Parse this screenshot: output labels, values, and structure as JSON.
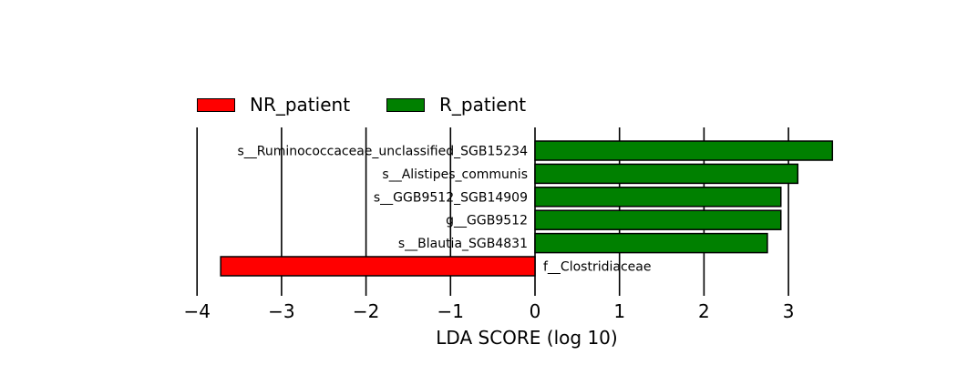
{
  "chart_data": {
    "type": "bar",
    "orientation": "horizontal",
    "title": "",
    "xlabel": "LDA SCORE (log 10)",
    "ylabel": "",
    "xlim": [
      -4,
      3.5
    ],
    "xticks": [
      -4,
      -3,
      -2,
      -1,
      0,
      1,
      2,
      3
    ],
    "xtick_labels": [
      "−4",
      "−3",
      "−2",
      "−1",
      "0",
      "1",
      "2",
      "3"
    ],
    "grid": "vertical-lines",
    "legend_placement": "top",
    "legend": [
      {
        "name": "NR_patient",
        "color": "#ff0000"
      },
      {
        "name": "R_patient",
        "color": "#008000"
      }
    ],
    "categories": [
      "s__Ruminococcaceae_unclassified_SGB15234",
      "s__Alistipes_communis",
      "s__GGB9512_SGB14909",
      "g__GGB9512",
      "s__Blautia_SGB4831",
      "f__Clostridiaceae"
    ],
    "values": [
      3.52,
      3.11,
      2.91,
      2.91,
      2.75,
      -3.72
    ],
    "groups": [
      "R_patient",
      "R_patient",
      "R_patient",
      "R_patient",
      "R_patient",
      "NR_patient"
    ]
  }
}
